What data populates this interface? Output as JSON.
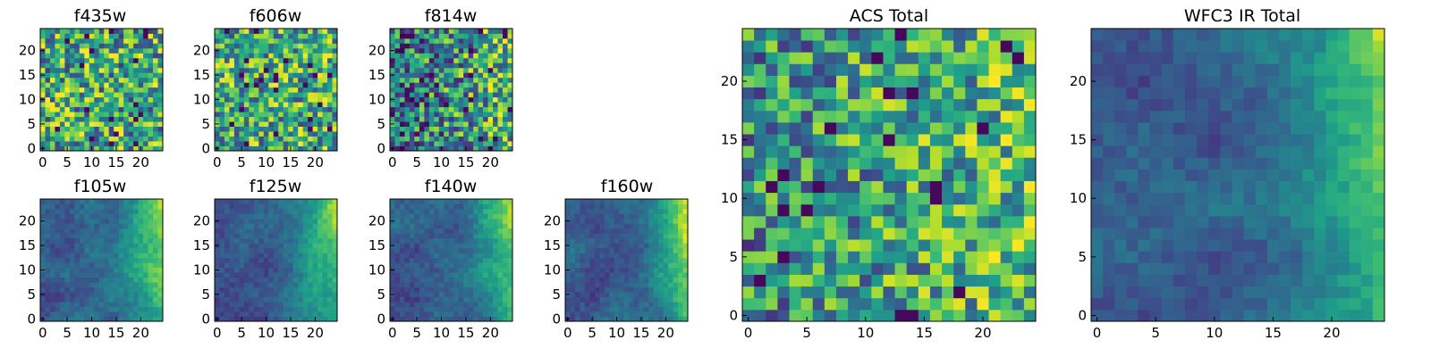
{
  "colormap": "viridis",
  "chart_data": [
    {
      "id": "f435w",
      "type": "heatmap",
      "title": "f435w",
      "grid": 25,
      "xlim": [
        0,
        24
      ],
      "ylim": [
        0,
        24
      ],
      "xticks": [
        "0",
        "5",
        "10",
        "15",
        "20"
      ],
      "yticks": [
        "0",
        "5",
        "10",
        "15",
        "20"
      ],
      "pattern": "noise",
      "mean": 0.6,
      "spread": 0.42,
      "seed": 11,
      "values_note": "pixel noise, mostly green-yellow with scattered dark pixels"
    },
    {
      "id": "f606w",
      "type": "heatmap",
      "title": "f606w",
      "grid": 25,
      "xlim": [
        0,
        24
      ],
      "ylim": [
        0,
        24
      ],
      "xticks": [
        "0",
        "5",
        "10",
        "15",
        "20"
      ],
      "yticks": [
        "0",
        "5",
        "10",
        "15",
        "20"
      ],
      "pattern": "noise",
      "mean": 0.62,
      "spread": 0.4,
      "seed": 23
    },
    {
      "id": "f814w",
      "type": "heatmap",
      "title": "f814w",
      "grid": 25,
      "xlim": [
        0,
        24
      ],
      "ylim": [
        0,
        24
      ],
      "xticks": [
        "0",
        "5",
        "10",
        "15",
        "20"
      ],
      "yticks": [
        "0",
        "5",
        "10",
        "15",
        "20"
      ],
      "pattern": "noise_gradient",
      "mean": 0.5,
      "spread": 0.42,
      "gradient": 0.28,
      "seed": 37
    },
    {
      "id": "f105w",
      "type": "heatmap",
      "title": "f105w",
      "grid": 25,
      "xlim": [
        0,
        24
      ],
      "ylim": [
        0,
        24
      ],
      "xticks": [
        "0",
        "5",
        "10",
        "15",
        "20"
      ],
      "yticks": [
        "0",
        "5",
        "10",
        "15",
        "20"
      ],
      "pattern": "smooth_right_bright",
      "seed": 41
    },
    {
      "id": "f125w",
      "type": "heatmap",
      "title": "f125w",
      "grid": 25,
      "xlim": [
        0,
        24
      ],
      "ylim": [
        0,
        24
      ],
      "xticks": [
        "0",
        "5",
        "10",
        "15",
        "20"
      ],
      "yticks": [
        "0",
        "5",
        "10",
        "15",
        "20"
      ],
      "pattern": "smooth_right_bright",
      "seed": 53
    },
    {
      "id": "f140w",
      "type": "heatmap",
      "title": "f140w",
      "grid": 25,
      "xlim": [
        0,
        24
      ],
      "ylim": [
        0,
        24
      ],
      "xticks": [
        "0",
        "5",
        "10",
        "15",
        "20"
      ],
      "yticks": [
        "0",
        "5",
        "10",
        "15",
        "20"
      ],
      "pattern": "smooth_right_bright",
      "seed": 67
    },
    {
      "id": "f160w",
      "type": "heatmap",
      "title": "f160w",
      "grid": 25,
      "xlim": [
        0,
        24
      ],
      "ylim": [
        0,
        24
      ],
      "xticks": [
        "0",
        "5",
        "10",
        "15",
        "20"
      ],
      "yticks": [
        "0",
        "5",
        "10",
        "15",
        "20"
      ],
      "pattern": "smooth_right_bright",
      "seed": 79
    },
    {
      "id": "acs_total",
      "type": "heatmap",
      "title": "ACS Total",
      "grid": 25,
      "xlim": [
        0,
        24
      ],
      "ylim": [
        0,
        24
      ],
      "xticks": [
        "0",
        "5",
        "10",
        "15",
        "20"
      ],
      "yticks": [
        "0",
        "5",
        "10",
        "15",
        "20"
      ],
      "pattern": "noise_gradient",
      "mean": 0.58,
      "spread": 0.36,
      "gradient": 0.2,
      "seed": 97
    },
    {
      "id": "wfc3_ir_total",
      "type": "heatmap",
      "title": "WFC3 IR Total",
      "grid": 25,
      "xlim": [
        0,
        24
      ],
      "ylim": [
        0,
        24
      ],
      "xticks": [
        "0",
        "5",
        "10",
        "15",
        "20"
      ],
      "yticks": [
        "0",
        "5",
        "10",
        "15",
        "20"
      ],
      "pattern": "smooth_right_bright",
      "seed": 131
    }
  ]
}
